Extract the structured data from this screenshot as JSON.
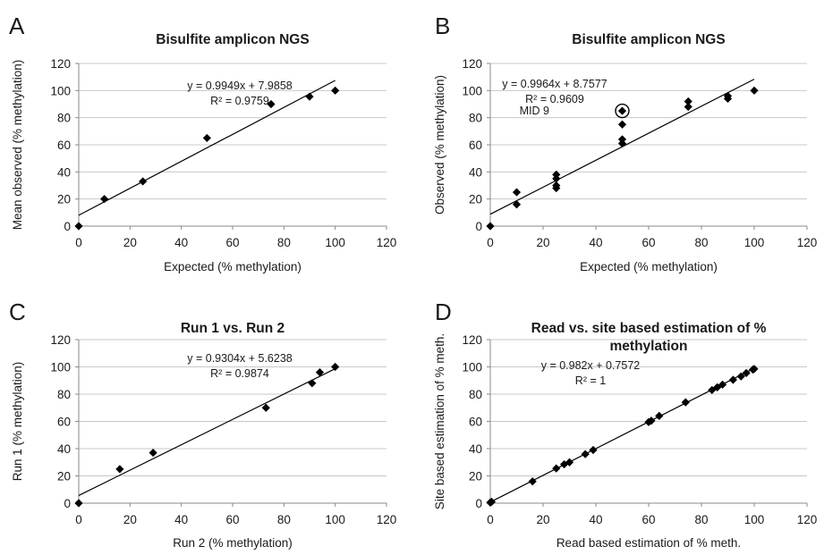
{
  "colors": {
    "marker": "#000000",
    "grid": "#c8c8c8",
    "axis": "#8a8a8a",
    "trendline": "#000000"
  },
  "chart_data": [
    {
      "panel": "A",
      "type": "scatter",
      "title": [
        "Bisulfite amplicon NGS"
      ],
      "xlabel": "Expected (% methylation)",
      "ylabel": "Mean observed (% methylation)",
      "xlim": [
        0,
        120
      ],
      "ylim": [
        0,
        120
      ],
      "xticks": [
        0,
        20,
        40,
        60,
        80,
        100,
        120
      ],
      "yticks": [
        0,
        20,
        40,
        60,
        80,
        100,
        120
      ],
      "grid": "horizontal",
      "marker": "diamond",
      "points": [
        {
          "x": 0,
          "y": 0
        },
        {
          "x": 10,
          "y": 20
        },
        {
          "x": 25,
          "y": 33
        },
        {
          "x": 50,
          "y": 65
        },
        {
          "x": 75,
          "y": 90
        },
        {
          "x": 90,
          "y": 95.5
        },
        {
          "x": 100,
          "y": 100
        }
      ],
      "trendline": {
        "slope": 0.9949,
        "intercept": 7.9858,
        "x_range": [
          0,
          100
        ]
      },
      "equation": "y = 0.9949x + 7.9858",
      "r2": "R² = 0.9759"
    },
    {
      "panel": "B",
      "type": "scatter",
      "title": [
        "Bisulfite amplicon NGS"
      ],
      "xlabel": "Expected (% methylation)",
      "ylabel": "Observed (% methylation)",
      "xlim": [
        0,
        120
      ],
      "ylim": [
        0,
        120
      ],
      "xticks": [
        0,
        20,
        40,
        60,
        80,
        100,
        120
      ],
      "yticks": [
        0,
        20,
        40,
        60,
        80,
        100,
        120
      ],
      "grid": "horizontal",
      "marker": "diamond",
      "points": [
        {
          "x": 0,
          "y": 0
        },
        {
          "x": 10,
          "y": 25
        },
        {
          "x": 10,
          "y": 16
        },
        {
          "x": 25,
          "y": 38
        },
        {
          "x": 25,
          "y": 35
        },
        {
          "x": 25,
          "y": 30
        },
        {
          "x": 25,
          "y": 28
        },
        {
          "x": 50,
          "y": 85
        },
        {
          "x": 50,
          "y": 75
        },
        {
          "x": 50,
          "y": 64
        },
        {
          "x": 50,
          "y": 61
        },
        {
          "x": 75,
          "y": 92
        },
        {
          "x": 75,
          "y": 88
        },
        {
          "x": 90,
          "y": 96
        },
        {
          "x": 90,
          "y": 94
        },
        {
          "x": 100,
          "y": 100
        }
      ],
      "trendline": {
        "slope": 0.9964,
        "intercept": 8.7577,
        "x_range": [
          0,
          100
        ]
      },
      "equation": "y = 0.9964x + 8.7577",
      "r2": "R² = 0.9609",
      "annotation": {
        "text": "MID 9",
        "x": 50,
        "y": 85
      }
    },
    {
      "panel": "C",
      "type": "scatter",
      "title": [
        "Run 1 vs. Run 2"
      ],
      "xlabel": "Run 2 (% methylation)",
      "ylabel": "Run 1 (% methylation)",
      "xlim": [
        0,
        120
      ],
      "ylim": [
        0,
        120
      ],
      "xticks": [
        0,
        20,
        40,
        60,
        80,
        100,
        120
      ],
      "yticks": [
        0,
        20,
        40,
        60,
        80,
        100,
        120
      ],
      "grid": "horizontal",
      "marker": "diamond",
      "points": [
        {
          "x": 0,
          "y": 0
        },
        {
          "x": 16,
          "y": 25
        },
        {
          "x": 29,
          "y": 37
        },
        {
          "x": 73,
          "y": 70
        },
        {
          "x": 91,
          "y": 88
        },
        {
          "x": 94,
          "y": 96
        },
        {
          "x": 100,
          "y": 100
        }
      ],
      "trendline": {
        "slope": 0.9304,
        "intercept": 5.6238,
        "x_range": [
          0,
          100
        ]
      },
      "equation": "y = 0.9304x + 5.6238",
      "r2": "R² = 0.9874"
    },
    {
      "panel": "D",
      "type": "scatter",
      "title": [
        "Read vs. site based estimation of %",
        "methylation"
      ],
      "xlabel": "Read based estimation of % meth.",
      "ylabel": "Site based estimation of % meth.",
      "xlim": [
        0,
        120
      ],
      "ylim": [
        0,
        120
      ],
      "xticks": [
        0,
        20,
        40,
        60,
        80,
        100,
        120
      ],
      "yticks": [
        0,
        20,
        40,
        60,
        80,
        100,
        120
      ],
      "grid": "horizontal",
      "marker": "diamond",
      "points": [
        {
          "x": 0,
          "y": 0.5
        },
        {
          "x": 0.5,
          "y": 1
        },
        {
          "x": 16,
          "y": 16
        },
        {
          "x": 25,
          "y": 25.5
        },
        {
          "x": 28,
          "y": 28.5
        },
        {
          "x": 30,
          "y": 30
        },
        {
          "x": 36,
          "y": 36
        },
        {
          "x": 39,
          "y": 39
        },
        {
          "x": 60,
          "y": 59.5
        },
        {
          "x": 61,
          "y": 60.5
        },
        {
          "x": 64,
          "y": 64
        },
        {
          "x": 74,
          "y": 74
        },
        {
          "x": 84,
          "y": 83
        },
        {
          "x": 86,
          "y": 85
        },
        {
          "x": 88,
          "y": 87
        },
        {
          "x": 92,
          "y": 90.5
        },
        {
          "x": 95,
          "y": 93
        },
        {
          "x": 97,
          "y": 95.5
        },
        {
          "x": 99.5,
          "y": 98
        },
        {
          "x": 100,
          "y": 98.5
        }
      ],
      "trendline": {
        "slope": 0.982,
        "intercept": 0.7572,
        "x_range": [
          0,
          100
        ]
      },
      "equation": "y = 0.982x + 0.7572",
      "r2": "R² = 1"
    }
  ]
}
